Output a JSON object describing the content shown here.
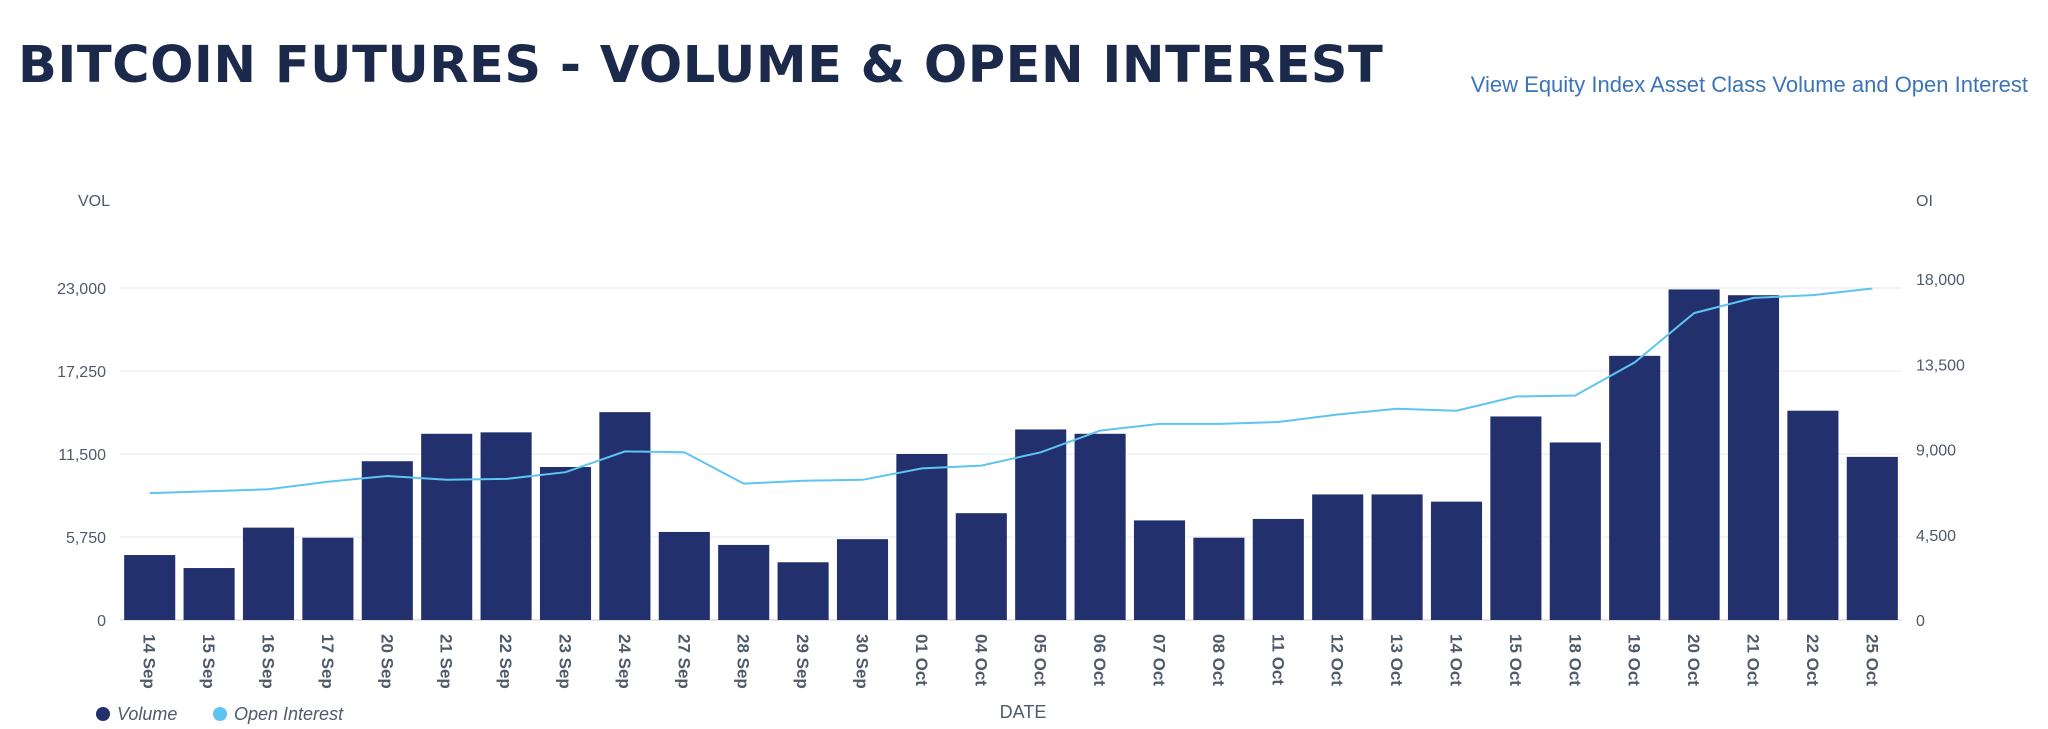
{
  "header": {
    "title": "BITCOIN FUTURES - VOLUME & OPEN INTEREST",
    "link_label": "View Equity Index Asset Class Volume and Open Interest"
  },
  "colors": {
    "title": "#1b2a4a",
    "link": "#3d74b8",
    "volume_bar": "#22306e",
    "open_interest_line": "#5ec4f2"
  },
  "chart_data": {
    "type": "bar",
    "categories": [
      "14 Sep",
      "15 Sep",
      "16 Sep",
      "17 Sep",
      "20 Sep",
      "21 Sep",
      "22 Sep",
      "23 Sep",
      "24 Sep",
      "27 Sep",
      "28 Sep",
      "29 Sep",
      "30 Sep",
      "01 Oct",
      "04 Oct",
      "05 Oct",
      "06 Oct",
      "07 Oct",
      "08 Oct",
      "11 Oct",
      "12 Oct",
      "13 Oct",
      "14 Oct",
      "15 Oct",
      "18 Oct",
      "19 Oct",
      "20 Oct",
      "21 Oct",
      "22 Oct",
      "25 Oct"
    ],
    "series": [
      {
        "name": "Volume",
        "type": "bar",
        "axis": "left",
        "values": [
          4500,
          3600,
          6400,
          5700,
          11000,
          12900,
          13000,
          10600,
          14400,
          6100,
          5200,
          4000,
          5600,
          11500,
          7400,
          13200,
          12900,
          6900,
          5700,
          7000,
          8700,
          8700,
          8200,
          14100,
          12300,
          18300,
          22900,
          22500,
          14500,
          11300
        ]
      },
      {
        "name": "Open Interest",
        "type": "line",
        "axis": "right",
        "values": [
          6700,
          6800,
          6900,
          7300,
          7600,
          7400,
          7450,
          7800,
          8900,
          8850,
          7200,
          7350,
          7400,
          8000,
          8150,
          8850,
          10000,
          10350,
          10350,
          10450,
          10850,
          11150,
          11050,
          11800,
          11850,
          13600,
          16200,
          17000,
          17150,
          17500
        ]
      }
    ],
    "xlabel": "DATE",
    "ylabel_left": "VOL",
    "ylabel_right": "OI",
    "ylim_left": [
      0,
      23000
    ],
    "ylim_right": [
      0,
      18000
    ],
    "yticks_left": [
      "0",
      "5,750",
      "11,500",
      "17,250",
      "23,000"
    ],
    "yticks_right": [
      "0",
      "4,500",
      "9,000",
      "13,500",
      "18,000"
    ],
    "grid": true,
    "legend_position": "bottom-left"
  }
}
